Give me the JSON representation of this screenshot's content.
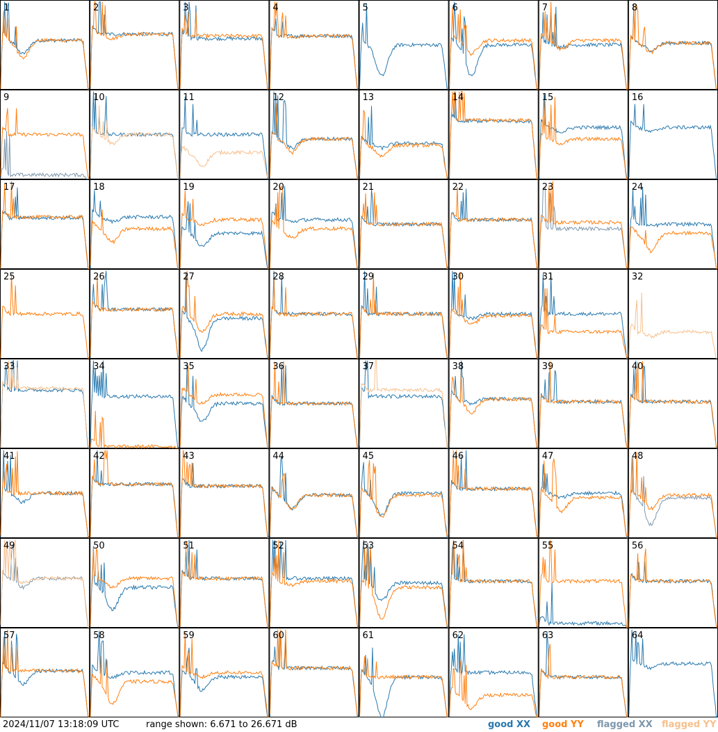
{
  "footer": {
    "timestamp": "2024/11/07 13:18:09 UTC",
    "range_text": "range shown: 6.671 to 26.671 dB"
  },
  "legend": [
    {
      "label": "good XX",
      "color": "#2778ae"
    },
    {
      "label": "good YY",
      "color": "#ff7f0e"
    },
    {
      "label": "flagged XX",
      "color": "#7d97ad"
    },
    {
      "label": "flagged YY",
      "color": "#f7c08e"
    }
  ],
  "colors": {
    "good_xx": "#2778ae",
    "good_yy": "#ff7f0e",
    "flagged_xx": "#7d97ad",
    "flagged_yy": "#f7c08e"
  },
  "chart_data": {
    "type": "line",
    "layout": "8x8 grid of small multiples",
    "ylim_db": [
      6.671,
      26.671
    ],
    "series_names": [
      "XX",
      "YY"
    ],
    "panels": [
      {
        "id": "1",
        "xx": "good",
        "yy": "good",
        "xx_level": 0.55,
        "yy_level": 0.55,
        "xx_dip": 0.15,
        "yy_dip": 0.2
      },
      {
        "id": "2",
        "xx": "good",
        "yy": "good",
        "xx_level": 0.62,
        "yy_level": 0.62,
        "xx_dip": 0.0,
        "yy_dip": 0.05
      },
      {
        "id": "3",
        "xx": "good",
        "yy": "good",
        "xx_level": 0.57,
        "yy_level": 0.6,
        "xx_dip": 0.0,
        "yy_dip": 0.0
      },
      {
        "id": "4",
        "xx": "good",
        "yy": "good",
        "xx_level": 0.6,
        "yy_level": 0.6,
        "xx_dip": 0.0,
        "yy_dip": 0.02
      },
      {
        "id": "5",
        "xx": "good",
        "yy": "none",
        "xx_level": 0.5,
        "yy_level": 0.0,
        "xx_dip": 0.35,
        "yy_dip": 0.0
      },
      {
        "id": "6",
        "xx": "good",
        "yy": "good",
        "xx_level": 0.5,
        "yy_level": 0.55,
        "xx_dip": 0.35,
        "yy_dip": 0.15
      },
      {
        "id": "7",
        "xx": "good",
        "yy": "good",
        "xx_level": 0.5,
        "yy_level": 0.55,
        "xx_dip": 0.02,
        "yy_dip": 0.1
      },
      {
        "id": "8",
        "xx": "good",
        "yy": "good",
        "xx_level": 0.52,
        "yy_level": 0.52,
        "xx_dip": 0.08,
        "yy_dip": 0.1
      },
      {
        "id": "9",
        "xx": "flagged",
        "yy": "good",
        "xx_level": 0.05,
        "yy_level": 0.5,
        "xx_dip": 0.0,
        "yy_dip": 0.0
      },
      {
        "id": "10",
        "xx": "good",
        "yy": "flagged",
        "xx_level": 0.5,
        "yy_level": 0.5,
        "xx_dip": 0.0,
        "yy_dip": 0.1
      },
      {
        "id": "11",
        "xx": "good",
        "yy": "flagged",
        "xx_level": 0.5,
        "yy_level": 0.3,
        "xx_dip": 0.0,
        "yy_dip": 0.15
      },
      {
        "id": "12",
        "xx": "good",
        "yy": "good",
        "xx_level": 0.45,
        "yy_level": 0.45,
        "xx_dip": 0.1,
        "yy_dip": 0.15
      },
      {
        "id": "13",
        "xx": "good",
        "yy": "good",
        "xx_level": 0.4,
        "yy_level": 0.38,
        "xx_dip": 0.05,
        "yy_dip": 0.12
      },
      {
        "id": "14",
        "xx": "good",
        "yy": "good",
        "xx_level": 0.65,
        "yy_level": 0.66,
        "xx_dip": 0.0,
        "yy_dip": 0.0
      },
      {
        "id": "15",
        "xx": "good",
        "yy": "good",
        "xx_level": 0.58,
        "yy_level": 0.45,
        "xx_dip": 0.05,
        "yy_dip": 0.05
      },
      {
        "id": "16",
        "xx": "good",
        "yy": "none",
        "xx_level": 0.58,
        "yy_level": 0.0,
        "xx_dip": 0.05,
        "yy_dip": 0.0
      },
      {
        "id": "17",
        "xx": "good",
        "yy": "good",
        "xx_level": 0.57,
        "yy_level": 0.58,
        "xx_dip": 0.0,
        "yy_dip": 0.0
      },
      {
        "id": "18",
        "xx": "good",
        "yy": "good",
        "xx_level": 0.58,
        "yy_level": 0.45,
        "xx_dip": 0.05,
        "yy_dip": 0.15
      },
      {
        "id": "19",
        "xx": "good",
        "yy": "good",
        "xx_level": 0.4,
        "yy_level": 0.55,
        "xx_dip": 0.15,
        "yy_dip": 0.05
      },
      {
        "id": "20",
        "xx": "good",
        "yy": "good",
        "xx_level": 0.55,
        "yy_level": 0.45,
        "xx_dip": 0.02,
        "yy_dip": 0.1
      },
      {
        "id": "21",
        "xx": "good",
        "yy": "good",
        "xx_level": 0.5,
        "yy_level": 0.5,
        "xx_dip": 0.0,
        "yy_dip": 0.0
      },
      {
        "id": "22",
        "xx": "good",
        "yy": "good",
        "xx_level": 0.55,
        "yy_level": 0.55,
        "xx_dip": 0.0,
        "yy_dip": 0.0
      },
      {
        "id": "23",
        "xx": "flagged",
        "yy": "good",
        "xx_level": 0.45,
        "yy_level": 0.52,
        "xx_dip": 0.0,
        "yy_dip": 0.0
      },
      {
        "id": "24",
        "xx": "good",
        "yy": "good",
        "xx_level": 0.5,
        "yy_level": 0.4,
        "xx_dip": 0.02,
        "yy_dip": 0.2
      },
      {
        "id": "25",
        "xx": "none",
        "yy": "good",
        "xx_level": 0.0,
        "yy_level": 0.5,
        "xx_dip": 0.0,
        "yy_dip": 0.0
      },
      {
        "id": "26",
        "xx": "good",
        "yy": "good",
        "xx_level": 0.55,
        "yy_level": 0.55,
        "xx_dip": 0.0,
        "yy_dip": 0.0
      },
      {
        "id": "27",
        "xx": "good",
        "yy": "good",
        "xx_level": 0.45,
        "yy_level": 0.5,
        "xx_dip": 0.35,
        "yy_dip": 0.2
      },
      {
        "id": "28",
        "xx": "good",
        "yy": "good",
        "xx_level": 0.5,
        "yy_level": 0.5,
        "xx_dip": 0.0,
        "yy_dip": 0.02
      },
      {
        "id": "29",
        "xx": "good",
        "yy": "good",
        "xx_level": 0.5,
        "yy_level": 0.5,
        "xx_dip": 0.0,
        "yy_dip": 0.0
      },
      {
        "id": "30",
        "xx": "good",
        "yy": "good",
        "xx_level": 0.5,
        "yy_level": 0.48,
        "xx_dip": 0.05,
        "yy_dip": 0.1
      },
      {
        "id": "31",
        "xx": "good",
        "yy": "good",
        "xx_level": 0.5,
        "yy_level": 0.3,
        "xx_dip": 0.0,
        "yy_dip": 0.0
      },
      {
        "id": "32",
        "xx": "none",
        "yy": "flagged",
        "xx_level": 0.0,
        "yy_level": 0.3,
        "xx_dip": 0.0,
        "yy_dip": 0.05
      },
      {
        "id": "33",
        "xx": "good",
        "yy": "flagged",
        "xx_level": 0.65,
        "yy_level": 0.67,
        "xx_dip": 0.0,
        "yy_dip": 0.0
      },
      {
        "id": "34",
        "xx": "good",
        "yy": "good",
        "xx_level": 0.58,
        "yy_level": 0.02,
        "xx_dip": 0.0,
        "yy_dip": 0.0
      },
      {
        "id": "35",
        "xx": "good",
        "yy": "good",
        "xx_level": 0.5,
        "yy_level": 0.6,
        "xx_dip": 0.2,
        "yy_dip": 0.1
      },
      {
        "id": "36",
        "xx": "good",
        "yy": "good",
        "xx_level": 0.5,
        "yy_level": 0.5,
        "xx_dip": 0.0,
        "yy_dip": 0.0
      },
      {
        "id": "37",
        "xx": "good",
        "yy": "flagged",
        "xx_level": 0.58,
        "yy_level": 0.65,
        "xx_dip": 0.0,
        "yy_dip": 0.0
      },
      {
        "id": "38",
        "xx": "good",
        "yy": "good",
        "xx_level": 0.55,
        "yy_level": 0.55,
        "xx_dip": 0.05,
        "yy_dip": 0.15
      },
      {
        "id": "39",
        "xx": "good",
        "yy": "good",
        "xx_level": 0.52,
        "yy_level": 0.52,
        "xx_dip": 0.0,
        "yy_dip": 0.0
      },
      {
        "id": "40",
        "xx": "good",
        "yy": "good",
        "xx_level": 0.52,
        "yy_level": 0.52,
        "xx_dip": 0.0,
        "yy_dip": 0.0
      },
      {
        "id": "41",
        "xx": "good",
        "yy": "good",
        "xx_level": 0.5,
        "yy_level": 0.5,
        "xx_dip": 0.1,
        "yy_dip": 0.0
      },
      {
        "id": "42",
        "xx": "good",
        "yy": "good",
        "xx_level": 0.6,
        "yy_level": 0.6,
        "xx_dip": 0.0,
        "yy_dip": 0.0
      },
      {
        "id": "43",
        "xx": "good",
        "yy": "good",
        "xx_level": 0.58,
        "yy_level": 0.58,
        "xx_dip": 0.0,
        "yy_dip": 0.0
      },
      {
        "id": "44",
        "xx": "good",
        "yy": "good",
        "xx_level": 0.48,
        "yy_level": 0.48,
        "xx_dip": 0.15,
        "yy_dip": 0.15
      },
      {
        "id": "45",
        "xx": "good",
        "yy": "good",
        "xx_level": 0.5,
        "yy_level": 0.48,
        "xx_dip": 0.25,
        "yy_dip": 0.25
      },
      {
        "id": "46",
        "xx": "good",
        "yy": "good",
        "xx_level": 0.55,
        "yy_level": 0.55,
        "xx_dip": 0.0,
        "yy_dip": 0.0
      },
      {
        "id": "47",
        "xx": "good",
        "yy": "good",
        "xx_level": 0.5,
        "yy_level": 0.45,
        "xx_dip": 0.05,
        "yy_dip": 0.15
      },
      {
        "id": "48",
        "xx": "flagged",
        "yy": "good",
        "xx_level": 0.45,
        "yy_level": 0.48,
        "xx_dip": 0.3,
        "yy_dip": 0.15
      },
      {
        "id": "49",
        "xx": "flagged",
        "yy": "flagged",
        "xx_level": 0.55,
        "yy_level": 0.55,
        "xx_dip": 0.1,
        "yy_dip": 0.05
      },
      {
        "id": "50",
        "xx": "good",
        "yy": "good",
        "xx_level": 0.45,
        "yy_level": 0.55,
        "xx_dip": 0.25,
        "yy_dip": 0.1
      },
      {
        "id": "51",
        "xx": "good",
        "yy": "good",
        "xx_level": 0.55,
        "yy_level": 0.55,
        "xx_dip": 0.0,
        "yy_dip": 0.0
      },
      {
        "id": "52",
        "xx": "good",
        "yy": "good",
        "xx_level": 0.55,
        "yy_level": 0.52,
        "xx_dip": 0.0,
        "yy_dip": 0.05
      },
      {
        "id": "53",
        "xx": "good",
        "yy": "good",
        "xx_level": 0.5,
        "yy_level": 0.45,
        "xx_dip": 0.2,
        "yy_dip": 0.35
      },
      {
        "id": "54",
        "xx": "good",
        "yy": "good",
        "xx_level": 0.52,
        "yy_level": 0.52,
        "xx_dip": 0.0,
        "yy_dip": 0.0
      },
      {
        "id": "55",
        "xx": "good",
        "yy": "good",
        "xx_level": 0.05,
        "yy_level": 0.52,
        "xx_dip": 0.0,
        "yy_dip": 0.0
      },
      {
        "id": "56",
        "xx": "good",
        "yy": "good",
        "xx_level": 0.52,
        "yy_level": 0.52,
        "xx_dip": 0.0,
        "yy_dip": 0.0
      },
      {
        "id": "57",
        "xx": "good",
        "yy": "good",
        "xx_level": 0.52,
        "yy_level": 0.52,
        "xx_dip": 0.15,
        "yy_dip": 0.0
      },
      {
        "id": "58",
        "xx": "good",
        "yy": "good",
        "xx_level": 0.5,
        "yy_level": 0.4,
        "xx_dip": 0.05,
        "yy_dip": 0.25
      },
      {
        "id": "59",
        "xx": "good",
        "yy": "good",
        "xx_level": 0.45,
        "yy_level": 0.5,
        "xx_dip": 0.15,
        "yy_dip": 0.05
      },
      {
        "id": "60",
        "xx": "good",
        "yy": "good",
        "xx_level": 0.55,
        "yy_level": 0.55,
        "xx_dip": 0.0,
        "yy_dip": 0.0
      },
      {
        "id": "61",
        "xx": "good",
        "yy": "good",
        "xx_level": 0.45,
        "yy_level": 0.45,
        "xx_dip": 0.45,
        "yy_dip": 0.0
      },
      {
        "id": "62",
        "xx": "good",
        "yy": "good",
        "xx_level": 0.5,
        "yy_level": 0.25,
        "xx_dip": 0.0,
        "yy_dip": 0.15
      },
      {
        "id": "63",
        "xx": "good",
        "yy": "good",
        "xx_level": 0.45,
        "yy_level": 0.45,
        "xx_dip": 0.0,
        "yy_dip": 0.0
      },
      {
        "id": "64",
        "xx": "good",
        "yy": "none",
        "xx_level": 0.6,
        "yy_level": 0.0,
        "xx_dip": 0.05,
        "yy_dip": 0.0
      }
    ]
  }
}
